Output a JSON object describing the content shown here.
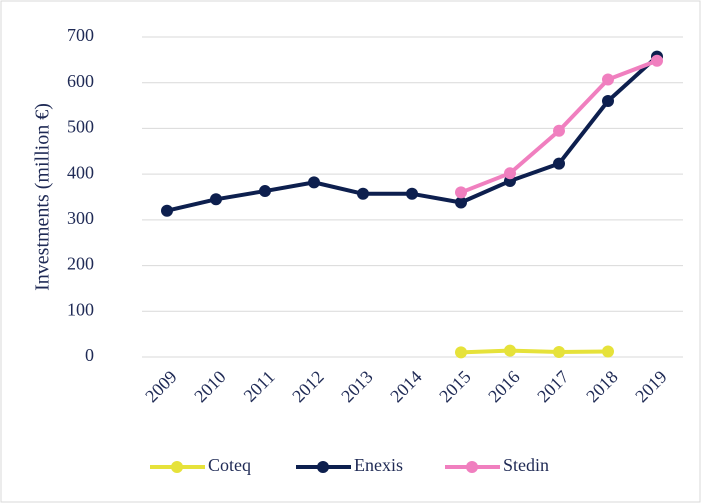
{
  "chart_data": {
    "type": "line",
    "y_label": "Investments (million €)",
    "categories": [
      "2009",
      "2010",
      "2011",
      "2012",
      "2013",
      "2014",
      "2015",
      "2016",
      "2017",
      "2018",
      "2019"
    ],
    "series": [
      {
        "name": "Coteq",
        "color": "#e6e23a",
        "values": [
          null,
          null,
          null,
          null,
          null,
          null,
          10,
          14,
          11,
          12,
          null
        ]
      },
      {
        "name": "Enexis",
        "color": "#0d1f4e",
        "values": [
          320,
          345,
          363,
          382,
          357,
          357,
          338,
          385,
          423,
          560,
          657
        ]
      },
      {
        "name": "Stedin",
        "color": "#f07fbf",
        "values": [
          null,
          null,
          null,
          null,
          null,
          null,
          360,
          402,
          495,
          607,
          648
        ]
      }
    ],
    "ylim": [
      0,
      700
    ],
    "yticks": [
      0,
      100,
      200,
      300,
      400,
      500,
      600,
      700
    ],
    "grid": true,
    "legend": "bottom"
  }
}
